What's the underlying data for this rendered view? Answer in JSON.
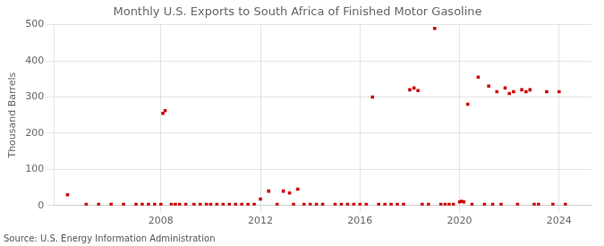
{
  "chart_data": {
    "type": "scatter",
    "title": "Monthly U.S. Exports to South Africa of Finished Motor Gasoline",
    "ylabel": "Thousand Barrels",
    "source": "Source: U.S. Energy Information Administration",
    "color": "#cc0000",
    "marker": "square",
    "grid": true,
    "xlim": [
      2003.7,
      2025.3
    ],
    "xticks": [
      2008,
      2012,
      2016,
      2020,
      2024
    ],
    "ylim": [
      0,
      500
    ],
    "yticks": [
      0,
      100,
      200,
      300,
      400,
      500
    ],
    "x": [
      2004.25,
      2005.0,
      2005.5,
      2006.0,
      2006.5,
      2007.0,
      2007.25,
      2007.5,
      2007.75,
      2008.0,
      2008.08,
      2008.17,
      2008.42,
      2008.58,
      2008.75,
      2009.0,
      2009.33,
      2009.58,
      2009.83,
      2010.0,
      2010.25,
      2010.5,
      2010.75,
      2011.0,
      2011.25,
      2011.5,
      2011.75,
      2012.0,
      2012.33,
      2012.67,
      2012.92,
      2013.17,
      2013.33,
      2013.5,
      2013.75,
      2014.0,
      2014.25,
      2014.5,
      2015.0,
      2015.25,
      2015.5,
      2015.75,
      2016.0,
      2016.25,
      2016.5,
      2016.75,
      2017.0,
      2017.25,
      2017.5,
      2017.75,
      2018.0,
      2018.17,
      2018.33,
      2018.5,
      2018.75,
      2019.0,
      2019.25,
      2019.42,
      2019.58,
      2019.75,
      2020.0,
      2020.08,
      2020.17,
      2020.33,
      2020.5,
      2020.75,
      2021.0,
      2021.17,
      2021.33,
      2021.5,
      2021.67,
      2021.83,
      2022.0,
      2022.17,
      2022.33,
      2022.5,
      2022.67,
      2022.83,
      2023.0,
      2023.17,
      2023.5,
      2023.75,
      2024.0,
      2024.25
    ],
    "values": [
      30,
      3,
      3,
      3,
      3,
      3,
      3,
      3,
      3,
      3,
      255,
      262,
      3,
      3,
      3,
      3,
      3,
      3,
      3,
      3,
      3,
      3,
      3,
      3,
      3,
      3,
      3,
      18,
      40,
      3,
      40,
      35,
      3,
      45,
      3,
      3,
      3,
      3,
      3,
      3,
      3,
      3,
      3,
      3,
      300,
      3,
      3,
      3,
      3,
      3,
      320,
      325,
      318,
      3,
      3,
      490,
      3,
      3,
      3,
      3,
      10,
      12,
      10,
      280,
      3,
      355,
      3,
      330,
      3,
      315,
      3,
      325,
      310,
      315,
      3,
      320,
      315,
      320,
      3,
      3,
      315,
      3,
      315,
      3
    ]
  }
}
